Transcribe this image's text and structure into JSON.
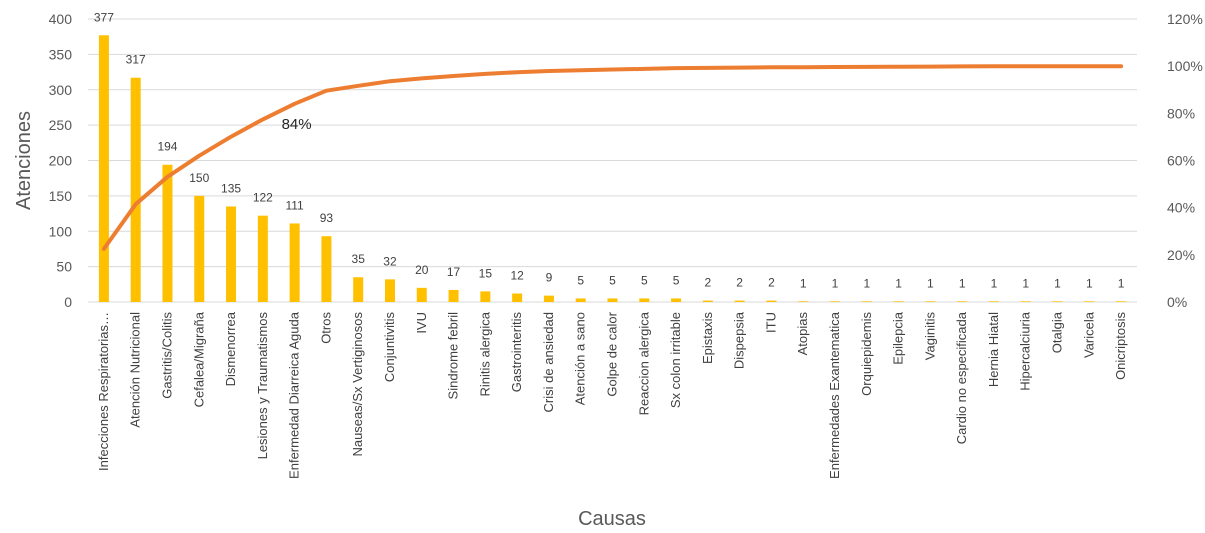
{
  "chart_data": {
    "type": "bar",
    "categories": [
      "Infecciones Respiratorias…",
      "Atención Nutricional",
      "Gastritis/Colitis",
      "Cefalea/Migraña",
      "Dismenorrea",
      "Lesiones y Traumatismos",
      "Enfermedad Diarreica Aguda",
      "Otros",
      "Nauseas/Sx Vertiginosos",
      "Conjuntivitis",
      "IVU",
      "Sindrome febril",
      "Rinitis alergica",
      "Gastrointeritis",
      "Crisi de ansiedad",
      "Atención a sano",
      "Golpe de calor",
      "Reaccion alergica",
      "Sx colon irritable",
      "Epistaxis",
      "Dispepsia",
      "ITU",
      "Atopias",
      "Enfermedades Exantematica",
      "Orquiepidemis",
      "Epilepcia",
      "Vaginitis",
      "Cardio no especificada",
      "Hernia Hiatal",
      "Hipercalciuria",
      "Otalgia",
      "Varicela",
      "Onicriptosis"
    ],
    "series": [
      {
        "type": "bar",
        "color": "#FFC000",
        "values": [
          377,
          317,
          194,
          150,
          135,
          122,
          111,
          93,
          35,
          32,
          20,
          17,
          15,
          12,
          9,
          5,
          5,
          5,
          5,
          2,
          2,
          2,
          1,
          1,
          1,
          1,
          1,
          1,
          1,
          1,
          1,
          1,
          1
        ]
      },
      {
        "type": "line",
        "axis": "right",
        "color": "#ED7D31",
        "values": [
          0.2253,
          0.4148,
          0.5308,
          0.6204,
          0.7011,
          0.7741,
          0.8404,
          0.896,
          0.9169,
          0.9361,
          0.948,
          0.9582,
          0.9671,
          0.9743,
          0.9797,
          0.9827,
          0.9857,
          0.9886,
          0.9916,
          0.9928,
          0.994,
          0.9952,
          0.9958,
          0.9964,
          0.997,
          0.9976,
          0.9982,
          0.9988,
          0.9994,
          0.9994,
          0.9997,
          0.9999,
          1.0
        ]
      }
    ],
    "ylabel": "Atenciones",
    "xlabel": "Causas",
    "ylim": [
      0,
      400
    ],
    "yticks": [
      "0",
      "50",
      "100",
      "150",
      "200",
      "250",
      "300",
      "350",
      "400"
    ],
    "y2lim": [
      0,
      1.2
    ],
    "y2ticks": [
      "0%",
      "20%",
      "40%",
      "60%",
      "80%",
      "100%",
      "120%"
    ],
    "annotation": {
      "text": "84%",
      "at_category": 6,
      "value": 0.84
    },
    "grid": true,
    "legend": "none"
  }
}
